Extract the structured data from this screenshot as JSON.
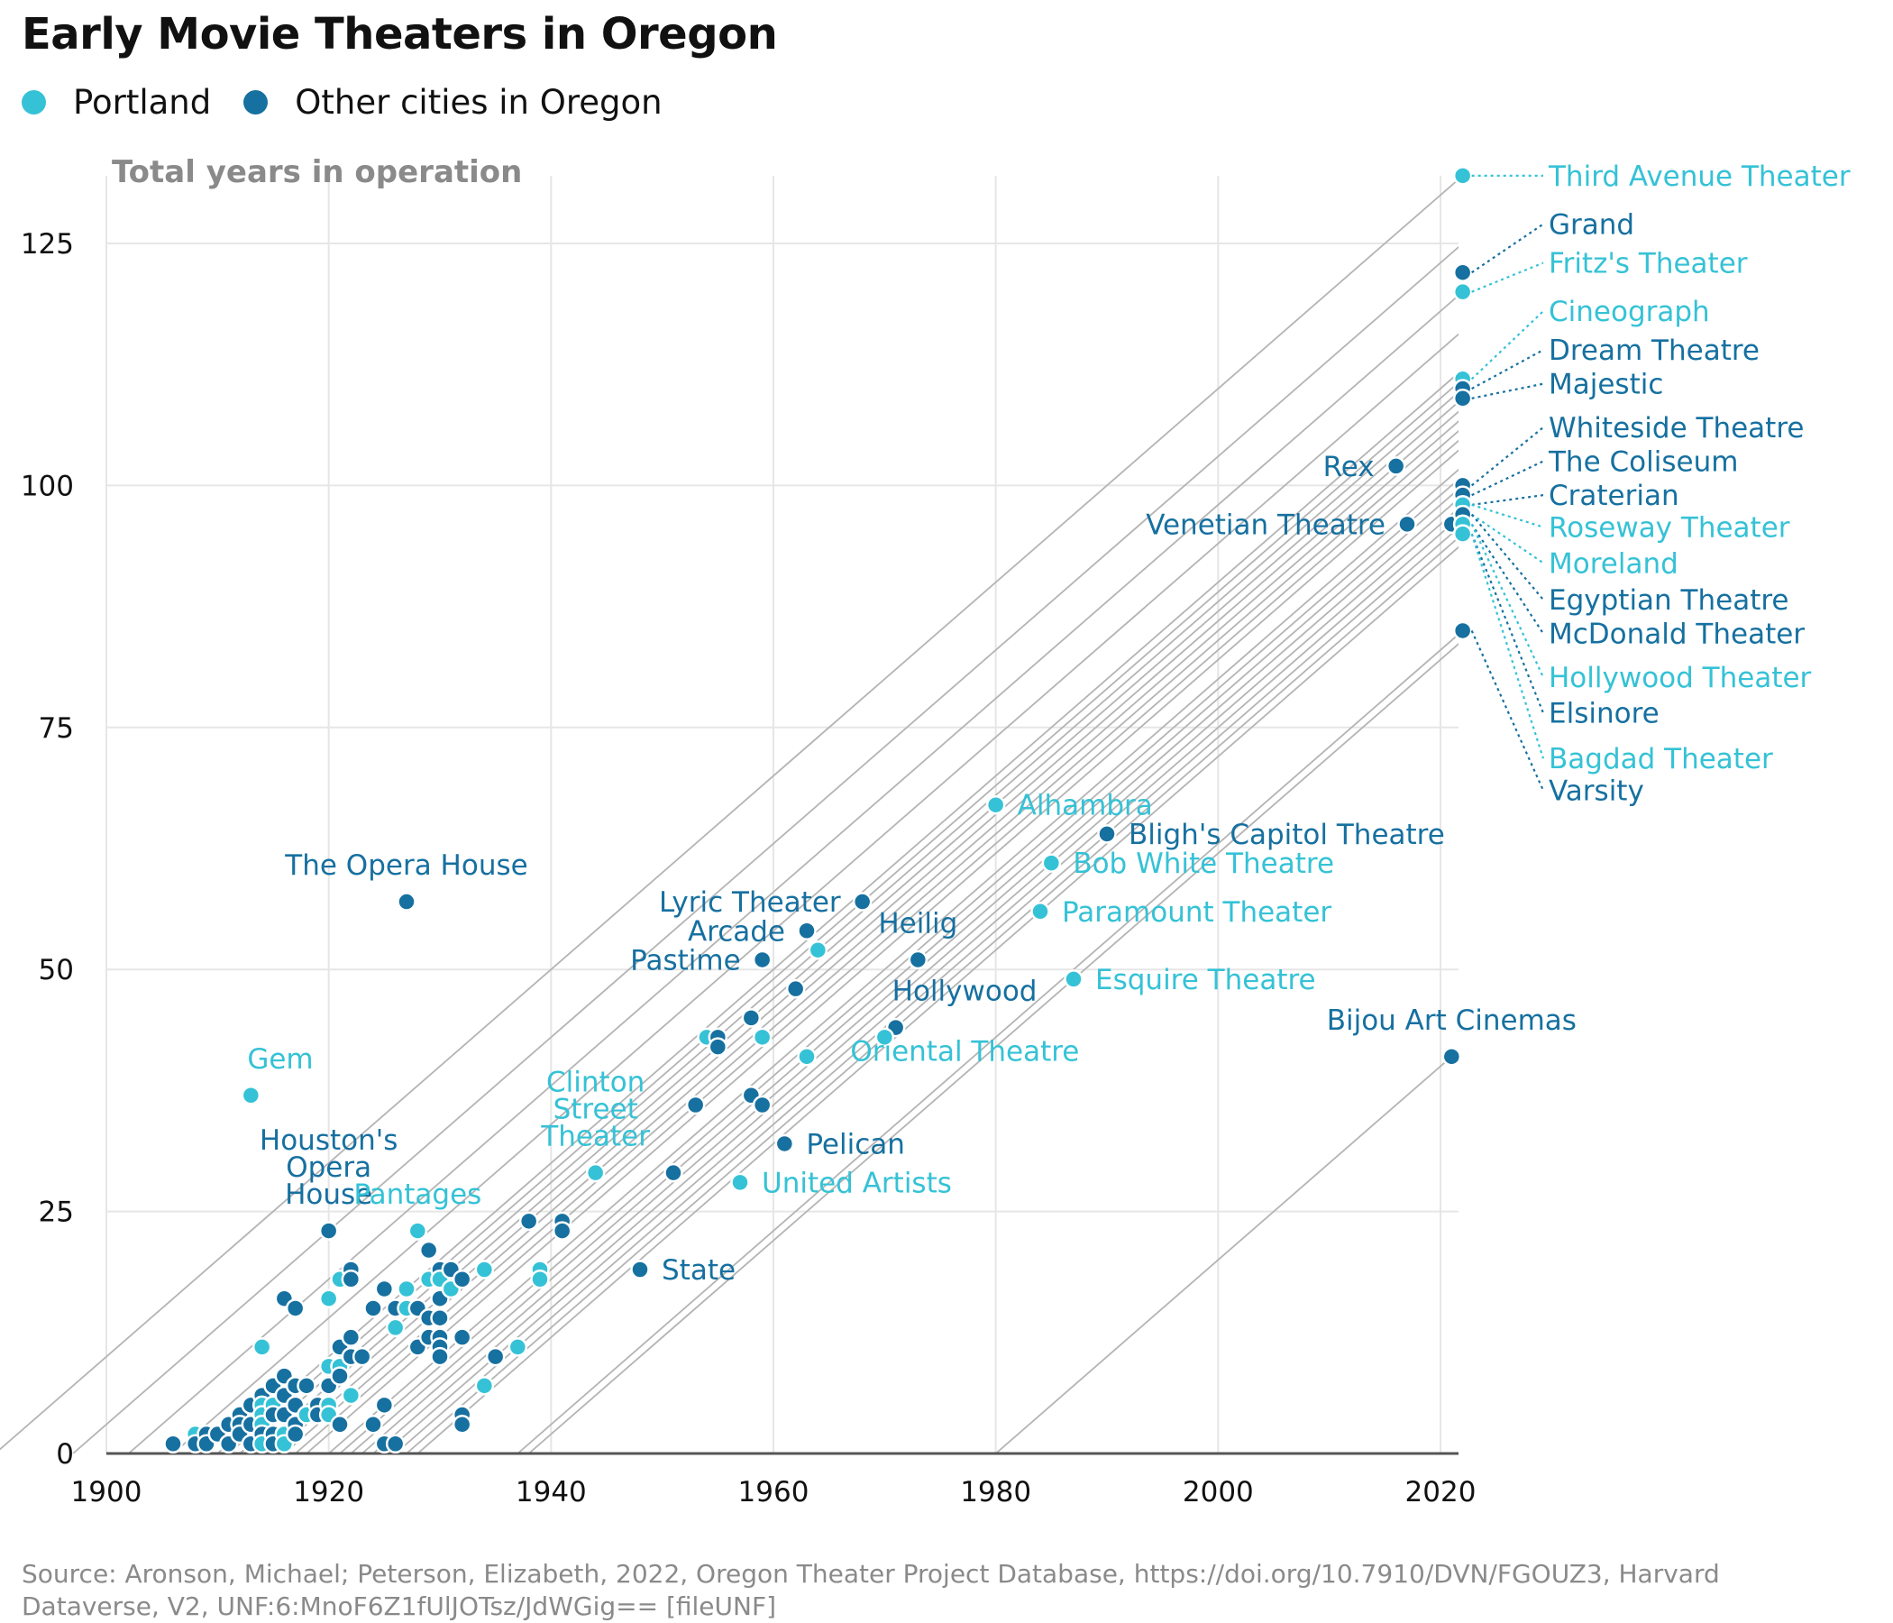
{
  "title": "Early Movie Theaters in Oregon",
  "legend": [
    {
      "label": "Portland",
      "color": "#35c2d6"
    },
    {
      "label": "Other cities in Oregon",
      "color": "#1670a0"
    }
  ],
  "source": "Source: Aronson, Michael; Peterson, Elizabeth, 2022, Oregon Theater Project Database, https://doi.org/10.7910/DVN/FGOUZ3, Harvard Dataverse, V2, UNF:6:MnoF6Z1fUlJOTsz/JdWGig== [fileUNF]",
  "chart_data": {
    "type": "scatter",
    "ylabel": "Total years in operation",
    "xlabel": "",
    "xlim": [
      1900,
      2022
    ],
    "ylim": [
      0,
      130
    ],
    "xticks": [
      1900,
      1920,
      1940,
      1960,
      1980,
      2000,
      2020
    ],
    "yticks": [
      0,
      25,
      50,
      75,
      100,
      125
    ],
    "grid": true,
    "legend_position": "top-left",
    "colors": {
      "portland": "#35c2d6",
      "other": "#1670a0"
    },
    "reference_lines_opening_years": [
      1890,
      1897,
      1902,
      1906,
      1910,
      1911,
      1912,
      1913,
      1914,
      1915,
      1916,
      1917,
      1918,
      1920,
      1921,
      1922,
      1923,
      1924,
      1925,
      1926,
      1927,
      1928,
      1937,
      1938,
      1980
    ],
    "labeled": [
      {
        "name": "Third Avenue Theater",
        "x": 2022,
        "y": 132,
        "group": "portland",
        "label_side": "right",
        "label_y": 132
      },
      {
        "name": "Grand",
        "x": 2022,
        "y": 122,
        "group": "other",
        "label_side": "right",
        "label_y": 127
      },
      {
        "name": "Fritz's Theater",
        "x": 2022,
        "y": 120,
        "group": "portland",
        "label_side": "right",
        "label_y": 123
      },
      {
        "name": "Cineograph",
        "x": 2022,
        "y": 111,
        "group": "portland",
        "label_side": "right",
        "label_y": 118
      },
      {
        "name": "Dream Theatre",
        "x": 2022,
        "y": 110,
        "group": "other",
        "label_side": "right",
        "label_y": 114
      },
      {
        "name": "Majestic",
        "x": 2022,
        "y": 109,
        "group": "other",
        "label_side": "right",
        "label_y": 110.5
      },
      {
        "name": "Whiteside Theatre",
        "x": 2022,
        "y": 100,
        "group": "other",
        "label_side": "right",
        "label_y": 106
      },
      {
        "name": "The Coliseum",
        "x": 2022,
        "y": 99,
        "group": "other",
        "label_side": "right",
        "label_y": 102.5
      },
      {
        "name": "Craterian",
        "x": 2022,
        "y": 98,
        "group": "other",
        "label_side": "right",
        "label_y": 99
      },
      {
        "name": "Roseway Theater",
        "x": 2022,
        "y": 98,
        "group": "portland",
        "label_side": "right",
        "label_y": 95.7
      },
      {
        "name": "Moreland",
        "x": 2022,
        "y": 97,
        "group": "portland",
        "label_side": "right",
        "label_y": 92
      },
      {
        "name": "Egyptian Theatre",
        "x": 2022,
        "y": 97,
        "group": "other",
        "label_side": "right",
        "label_y": 88.2
      },
      {
        "name": "McDonald Theater",
        "x": 2022,
        "y": 96,
        "group": "other",
        "label_side": "right",
        "label_y": 84.7
      },
      {
        "name": "Hollywood Theater",
        "x": 2022,
        "y": 96,
        "group": "portland",
        "label_side": "right",
        "label_y": 80.2
      },
      {
        "name": "Elsinore",
        "x": 2022,
        "y": 95,
        "group": "other",
        "label_side": "right",
        "label_y": 76.5
      },
      {
        "name": "Bagdad Theater",
        "x": 2022,
        "y": 95,
        "group": "portland",
        "label_side": "right",
        "label_y": 71.8
      },
      {
        "name": "Varsity",
        "x": 2022,
        "y": 85,
        "group": "other",
        "label_side": "right",
        "label_y": 68.5
      },
      {
        "name": "Rex",
        "x": 2016,
        "y": 102,
        "group": "other",
        "label_side": "left"
      },
      {
        "name": "Venetian Theatre",
        "x": 2017,
        "y": 96,
        "group": "other",
        "label_side": "left"
      },
      {
        "name": "Alhambra",
        "x": 1980,
        "y": 67,
        "group": "portland",
        "label_side": "right"
      },
      {
        "name": "Bligh's Capitol Theatre",
        "x": 1990,
        "y": 64,
        "group": "other",
        "label_side": "right"
      },
      {
        "name": "Bob White Theatre",
        "x": 1985,
        "y": 61,
        "group": "portland",
        "label_side": "right"
      },
      {
        "name": "Paramount Theater",
        "x": 1984,
        "y": 56,
        "group": "portland",
        "label_side": "right"
      },
      {
        "name": "Esquire Theatre",
        "x": 1987,
        "y": 49,
        "group": "portland",
        "label_side": "right"
      },
      {
        "name": "Bijou Art Cinemas",
        "x": 2021,
        "y": 41,
        "group": "other",
        "label_side": "above"
      },
      {
        "name": "The Opera House",
        "x": 1927,
        "y": 57,
        "group": "other",
        "label_side": "above"
      },
      {
        "name": "Lyric Theater",
        "x": 1968,
        "y": 57,
        "group": "other",
        "label_side": "left"
      },
      {
        "name": "Arcade",
        "x": 1963,
        "y": 54,
        "group": "other",
        "label_side": "left"
      },
      {
        "name": "Pastime",
        "x": 1959,
        "y": 51,
        "group": "other",
        "label_side": "left"
      },
      {
        "name": "Heilig",
        "x": 1973,
        "y": 51,
        "group": "other",
        "label_side": "above"
      },
      {
        "name": "Hollywood",
        "x": 1971,
        "y": 44,
        "group": "other",
        "label_side": "above-right"
      },
      {
        "name": "Oriental Theatre",
        "x": 1970,
        "y": 43,
        "group": "portland",
        "label_side": "below-right"
      },
      {
        "name": "Gem",
        "x": 1913,
        "y": 37,
        "group": "portland",
        "label_side": "above-right"
      },
      {
        "name": "Clinton Street Theater",
        "x": 1944,
        "y": 29,
        "group": "portland",
        "label_side": "above",
        "label_lines": [
          "Clinton",
          "Street",
          "Theater"
        ]
      },
      {
        "name": "Houston's Opera House",
        "x": 1920,
        "y": 23,
        "group": "other",
        "label_side": "above",
        "label_lines": [
          "Houston's",
          "Opera",
          "House"
        ]
      },
      {
        "name": "Pantages",
        "x": 1928,
        "y": 23,
        "group": "portland",
        "label_side": "above"
      },
      {
        "name": "Pelican",
        "x": 1961,
        "y": 32,
        "group": "other",
        "label_side": "right"
      },
      {
        "name": "United Artists",
        "x": 1957,
        "y": 28,
        "group": "portland",
        "label_side": "right"
      },
      {
        "name": "State",
        "x": 1948,
        "y": 19,
        "group": "other",
        "label_side": "right"
      }
    ],
    "points": [
      {
        "x": 1914,
        "y": 11,
        "group": "portland"
      },
      {
        "x": 1916,
        "y": 16,
        "group": "other"
      },
      {
        "x": 1917,
        "y": 15,
        "group": "other"
      },
      {
        "x": 1920,
        "y": 16,
        "group": "portland"
      },
      {
        "x": 1921,
        "y": 18,
        "group": "portland"
      },
      {
        "x": 1922,
        "y": 19,
        "group": "other"
      },
      {
        "x": 1922,
        "y": 18,
        "group": "other"
      },
      {
        "x": 1924,
        "y": 15,
        "group": "other"
      },
      {
        "x": 1925,
        "y": 17,
        "group": "other"
      },
      {
        "x": 1926,
        "y": 15,
        "group": "other"
      },
      {
        "x": 1926,
        "y": 13,
        "group": "portland"
      },
      {
        "x": 1927,
        "y": 17,
        "group": "portland"
      },
      {
        "x": 1927,
        "y": 15,
        "group": "portland"
      },
      {
        "x": 1928,
        "y": 15,
        "group": "other"
      },
      {
        "x": 1928,
        "y": 11,
        "group": "other"
      },
      {
        "x": 1929,
        "y": 21,
        "group": "other"
      },
      {
        "x": 1929,
        "y": 18,
        "group": "portland"
      },
      {
        "x": 1929,
        "y": 14,
        "group": "other"
      },
      {
        "x": 1929,
        "y": 12,
        "group": "other"
      },
      {
        "x": 1930,
        "y": 19,
        "group": "other"
      },
      {
        "x": 1930,
        "y": 18,
        "group": "portland"
      },
      {
        "x": 1930,
        "y": 16,
        "group": "other"
      },
      {
        "x": 1930,
        "y": 14,
        "group": "other"
      },
      {
        "x": 1930,
        "y": 12,
        "group": "other"
      },
      {
        "x": 1930,
        "y": 11,
        "group": "other"
      },
      {
        "x": 1930,
        "y": 10,
        "group": "other"
      },
      {
        "x": 1931,
        "y": 19,
        "group": "other"
      },
      {
        "x": 1931,
        "y": 17,
        "group": "portland"
      },
      {
        "x": 1932,
        "y": 18,
        "group": "other"
      },
      {
        "x": 1932,
        "y": 12,
        "group": "other"
      },
      {
        "x": 1932,
        "y": 4,
        "group": "other"
      },
      {
        "x": 1932,
        "y": 3,
        "group": "other"
      },
      {
        "x": 1934,
        "y": 19,
        "group": "portland"
      },
      {
        "x": 1934,
        "y": 7,
        "group": "portland"
      },
      {
        "x": 1935,
        "y": 10,
        "group": "other"
      },
      {
        "x": 1937,
        "y": 11,
        "group": "portland"
      },
      {
        "x": 1938,
        "y": 24,
        "group": "other"
      },
      {
        "x": 1939,
        "y": 19,
        "group": "portland"
      },
      {
        "x": 1939,
        "y": 18,
        "group": "portland"
      },
      {
        "x": 1941,
        "y": 24,
        "group": "other"
      },
      {
        "x": 1941,
        "y": 23,
        "group": "other"
      },
      {
        "x": 1951,
        "y": 29,
        "group": "other"
      },
      {
        "x": 1953,
        "y": 36,
        "group": "other"
      },
      {
        "x": 1954,
        "y": 43,
        "group": "portland"
      },
      {
        "x": 1955,
        "y": 43,
        "group": "other"
      },
      {
        "x": 1955,
        "y": 42,
        "group": "other"
      },
      {
        "x": 1958,
        "y": 45,
        "group": "other"
      },
      {
        "x": 1958,
        "y": 37,
        "group": "other"
      },
      {
        "x": 1959,
        "y": 43,
        "group": "portland"
      },
      {
        "x": 1959,
        "y": 36,
        "group": "other"
      },
      {
        "x": 1962,
        "y": 48,
        "group": "other"
      },
      {
        "x": 1963,
        "y": 41,
        "group": "portland"
      },
      {
        "x": 1964,
        "y": 52,
        "group": "portland"
      },
      {
        "x": 2021,
        "y": 96,
        "group": "other"
      },
      {
        "x": 1906,
        "y": 1,
        "group": "other"
      },
      {
        "x": 1908,
        "y": 2,
        "group": "portland"
      },
      {
        "x": 1908,
        "y": 1,
        "group": "other"
      },
      {
        "x": 1909,
        "y": 2,
        "group": "other"
      },
      {
        "x": 1909,
        "y": 1,
        "group": "other"
      },
      {
        "x": 1910,
        "y": 2,
        "group": "other"
      },
      {
        "x": 1911,
        "y": 3,
        "group": "other"
      },
      {
        "x": 1911,
        "y": 1,
        "group": "other"
      },
      {
        "x": 1912,
        "y": 4,
        "group": "other"
      },
      {
        "x": 1912,
        "y": 3,
        "group": "other"
      },
      {
        "x": 1912,
        "y": 2,
        "group": "other"
      },
      {
        "x": 1913,
        "y": 5,
        "group": "other"
      },
      {
        "x": 1913,
        "y": 3,
        "group": "other"
      },
      {
        "x": 1913,
        "y": 1,
        "group": "other"
      },
      {
        "x": 1914,
        "y": 6,
        "group": "other"
      },
      {
        "x": 1914,
        "y": 5,
        "group": "portland"
      },
      {
        "x": 1914,
        "y": 4,
        "group": "portland"
      },
      {
        "x": 1914,
        "y": 3,
        "group": "portland"
      },
      {
        "x": 1914,
        "y": 2,
        "group": "other"
      },
      {
        "x": 1914,
        "y": 1,
        "group": "portland"
      },
      {
        "x": 1915,
        "y": 7,
        "group": "other"
      },
      {
        "x": 1915,
        "y": 5,
        "group": "portland"
      },
      {
        "x": 1915,
        "y": 4,
        "group": "other"
      },
      {
        "x": 1915,
        "y": 2,
        "group": "other"
      },
      {
        "x": 1915,
        "y": 1,
        "group": "other"
      },
      {
        "x": 1916,
        "y": 8,
        "group": "other"
      },
      {
        "x": 1916,
        "y": 6,
        "group": "other"
      },
      {
        "x": 1916,
        "y": 4,
        "group": "other"
      },
      {
        "x": 1916,
        "y": 2,
        "group": "portland"
      },
      {
        "x": 1916,
        "y": 1,
        "group": "portland"
      },
      {
        "x": 1917,
        "y": 7,
        "group": "other"
      },
      {
        "x": 1917,
        "y": 5,
        "group": "other"
      },
      {
        "x": 1917,
        "y": 3,
        "group": "other"
      },
      {
        "x": 1917,
        "y": 2,
        "group": "other"
      },
      {
        "x": 1918,
        "y": 7,
        "group": "other"
      },
      {
        "x": 1918,
        "y": 4,
        "group": "portland"
      },
      {
        "x": 1919,
        "y": 5,
        "group": "other"
      },
      {
        "x": 1919,
        "y": 4,
        "group": "other"
      },
      {
        "x": 1920,
        "y": 9,
        "group": "portland"
      },
      {
        "x": 1920,
        "y": 7,
        "group": "other"
      },
      {
        "x": 1920,
        "y": 5,
        "group": "portland"
      },
      {
        "x": 1920,
        "y": 4,
        "group": "portland"
      },
      {
        "x": 1921,
        "y": 11,
        "group": "other"
      },
      {
        "x": 1921,
        "y": 9,
        "group": "portland"
      },
      {
        "x": 1921,
        "y": 8,
        "group": "other"
      },
      {
        "x": 1921,
        "y": 3,
        "group": "other"
      },
      {
        "x": 1922,
        "y": 12,
        "group": "other"
      },
      {
        "x": 1922,
        "y": 10,
        "group": "other"
      },
      {
        "x": 1922,
        "y": 6,
        "group": "portland"
      },
      {
        "x": 1923,
        "y": 10,
        "group": "other"
      },
      {
        "x": 1924,
        "y": 3,
        "group": "other"
      },
      {
        "x": 1925,
        "y": 5,
        "group": "other"
      },
      {
        "x": 1925,
        "y": 1,
        "group": "other"
      },
      {
        "x": 1926,
        "y": 1,
        "group": "other"
      }
    ]
  }
}
